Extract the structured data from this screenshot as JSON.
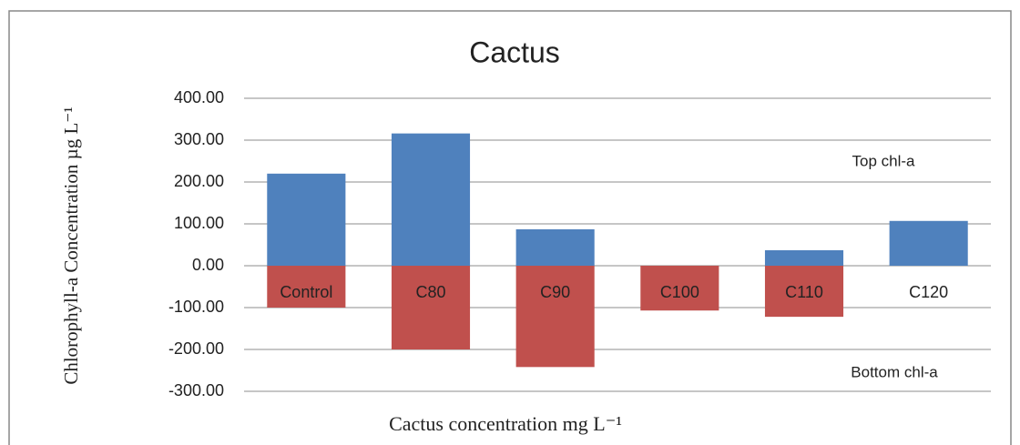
{
  "chart_data": {
    "type": "bar",
    "title": "Cactus",
    "y_label": "Chlorophyll-a Concentration µg L⁻¹",
    "x_label": "Cactus concentration mg L⁻¹",
    "categories": [
      "Control",
      "C80",
      "C90",
      "C100",
      "C110",
      "C120"
    ],
    "series": [
      {
        "name": "Top chl-a",
        "color": "#4f81bd",
        "values": [
          220,
          316,
          87,
          0,
          37,
          107
        ]
      },
      {
        "name": "Bottom chl-a",
        "color": "#c0504d",
        "values": [
          -100,
          -200,
          -242,
          -107,
          -122,
          0
        ]
      }
    ],
    "ylim": [
      -300,
      400
    ],
    "yticks": [
      {
        "value": -300,
        "label": "-300.00"
      },
      {
        "value": -200,
        "label": "-200.00"
      },
      {
        "value": -100,
        "label": "-100.00"
      },
      {
        "value": 0,
        "label": "0.00"
      },
      {
        "value": 100,
        "label": "100.00"
      },
      {
        "value": 200,
        "label": "200.00"
      },
      {
        "value": 300,
        "label": "300.00"
      },
      {
        "value": 400,
        "label": "400.00"
      }
    ],
    "grid": true
  }
}
